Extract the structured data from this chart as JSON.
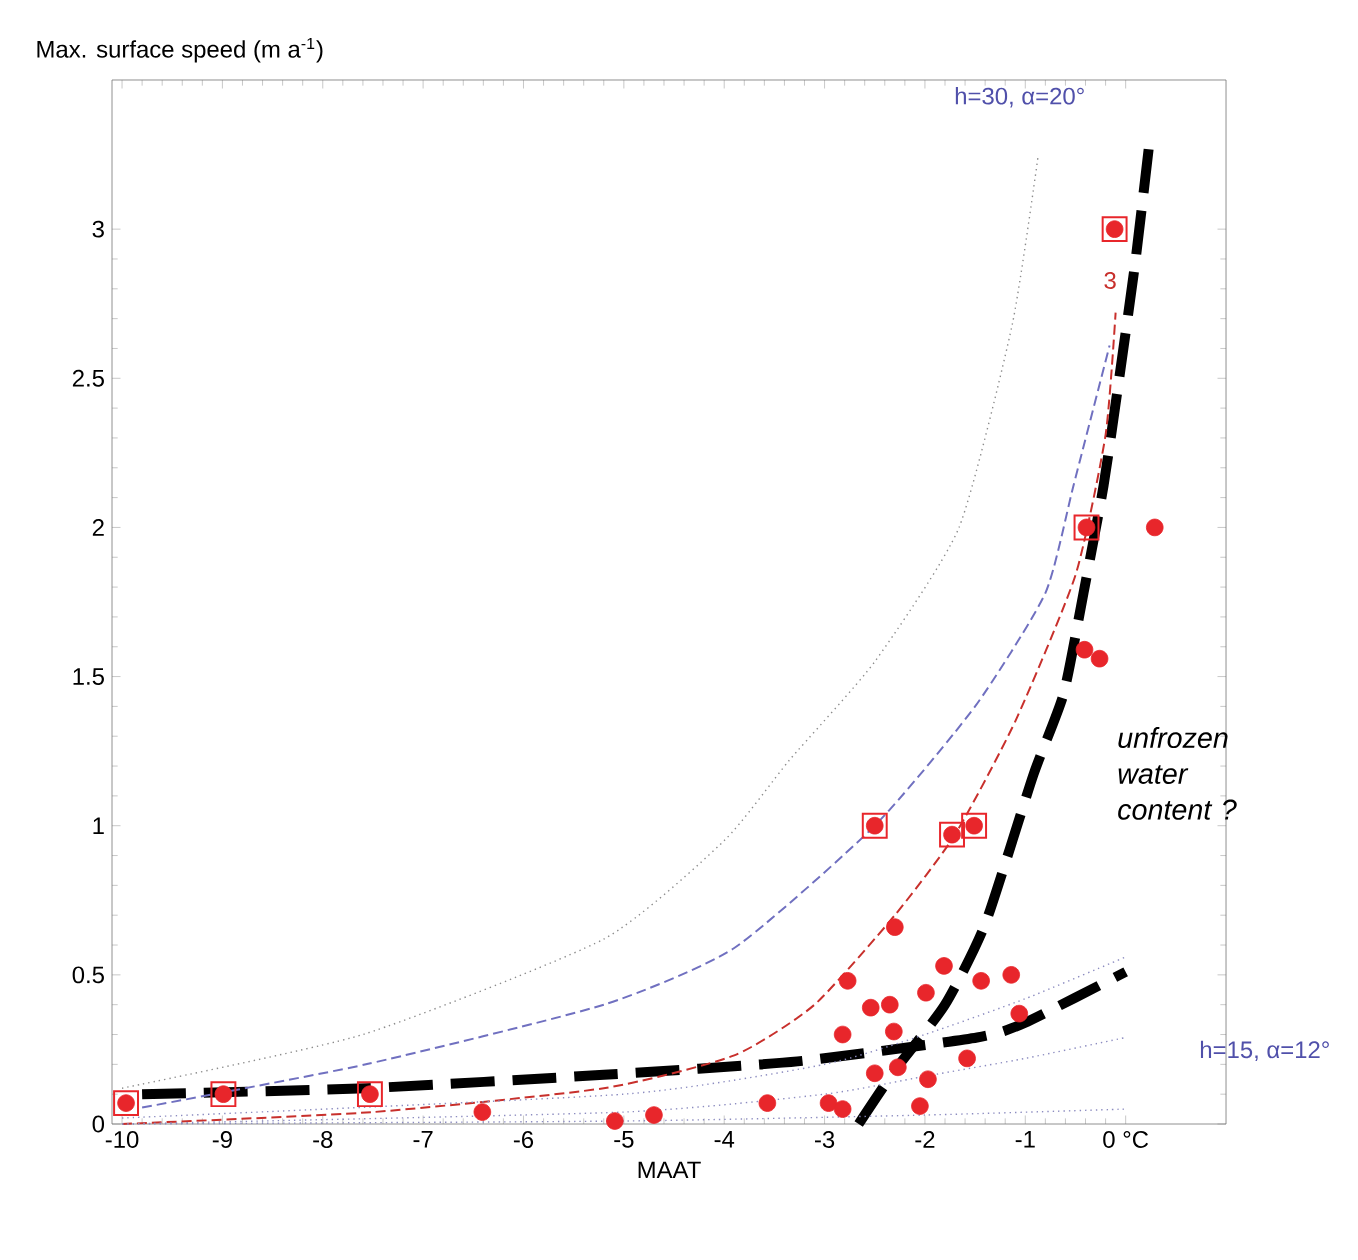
{
  "chart_data": {
    "type": "scatter",
    "ylabel": "Max. surface speed (m a$^{-1}$)",
    "xlabel": "MAAT",
    "xlim": [
      -10.1,
      1.0
    ],
    "ylim": [
      0,
      3.5
    ],
    "xticks": [
      -10,
      -9,
      -8,
      -7,
      -6,
      -5,
      -4,
      -3,
      -2,
      -1,
      {
        "value": 0,
        "label": "0 °C"
      }
    ],
    "yticks": [
      0,
      0.5,
      1,
      1.5,
      2,
      2.5,
      3
    ],
    "grid": false,
    "series": [
      {
        "marker": "circle",
        "color": "#e8262b",
        "x": [
          -9.96,
          -8.99,
          -7.53,
          -6.41,
          -5.09,
          -4.7,
          -3.57,
          -2.96,
          -2.82,
          -2.77,
          -2.82,
          -2.54,
          -2.35,
          -2.31,
          -2.3,
          -2.5,
          -2.27,
          -1.97,
          -2.05,
          -1.99,
          -1.81,
          -1.58,
          -1.44,
          -1.14,
          -1.06,
          -2.5,
          -1.73,
          -1.51,
          -0.39,
          -0.11,
          0.29,
          -0.41,
          -0.26
        ],
        "values": [
          0.07,
          0.1,
          0.1,
          0.04,
          0.01,
          0.03,
          0.07,
          0.07,
          0.05,
          0.48,
          0.3,
          0.39,
          0.4,
          0.31,
          0.66,
          0.17,
          0.19,
          0.15,
          0.06,
          0.44,
          0.53,
          0.22,
          0.48,
          0.5,
          0.37,
          1.0,
          0.97,
          1.0,
          2.0,
          3.0,
          2.0,
          1.59,
          1.56
        ]
      },
      {
        "marker": "square",
        "color": "#e8262b",
        "x": [
          -9.96,
          -8.99,
          -7.53,
          -2.5,
          -1.73,
          -1.51,
          -0.39,
          -0.11
        ],
        "values": [
          0.07,
          0.1,
          0.1,
          1.0,
          0.97,
          1.0,
          2.0,
          3.0
        ]
      },
      {
        "type": "line",
        "line_style": "dashed",
        "color": "#000000",
        "x": [
          -9.8,
          -7.57,
          -5.2,
          -3.27,
          -1.48,
          -1.0,
          0.0
        ],
        "values": [
          0.1,
          0.12,
          0.165,
          0.21,
          0.29,
          0.34,
          0.51
        ]
      },
      {
        "type": "line",
        "line_style": "dashed",
        "color": "#000000",
        "x": [
          -2.66,
          -2.3,
          -1.8,
          -1.4,
          -0.92,
          -0.62,
          -0.42,
          -0.22,
          -0.06,
          0.1,
          0.24
        ],
        "values": [
          0.0,
          0.18,
          0.4,
          0.67,
          1.17,
          1.44,
          1.78,
          2.14,
          2.51,
          2.9,
          3.3
        ]
      },
      {
        "type": "line",
        "line_style": "dashed",
        "color": "#c8302c",
        "x": [
          -10,
          -7.5,
          -5.2,
          -3.9,
          -3.1,
          -2.3,
          -1.7,
          -1.1,
          -0.5,
          -0.2,
          -0.1
        ],
        "values": [
          0.0,
          0.04,
          0.12,
          0.23,
          0.4,
          0.7,
          0.97,
          1.35,
          1.84,
          2.31,
          2.72
        ]
      },
      {
        "type": "line",
        "line_style": "dashed",
        "color": "#7070c0",
        "x": [
          -9.8,
          -7.57,
          -5.2,
          -3.9,
          -2.5,
          -1.5,
          -0.8,
          -0.52,
          -0.16
        ],
        "values": [
          0.055,
          0.2,
          0.4,
          0.59,
          1.0,
          1.4,
          1.78,
          2.14,
          2.61
        ]
      },
      {
        "type": "line",
        "line_style": "dotted",
        "color": "#8c8c8c",
        "x": [
          -10,
          -7.6,
          -5.2,
          -4.0,
          -3.35,
          -2.5,
          -1.66,
          -1.13,
          -0.87
        ],
        "values": [
          0.12,
          0.3,
          0.62,
          0.95,
          1.22,
          1.55,
          2.0,
          2.68,
          3.25
        ]
      },
      {
        "type": "line",
        "line_style": "dotted",
        "color": "#8c8cc0",
        "x": [
          -10,
          -5,
          -3,
          -2,
          -1,
          0
        ],
        "values": [
          0.02,
          0.1,
          0.2,
          0.3,
          0.42,
          0.56
        ]
      },
      {
        "type": "line",
        "line_style": "dotted",
        "color": "#8c8cc0",
        "x": [
          -10,
          -5,
          -3,
          -2,
          -1,
          0
        ],
        "values": [
          0.0,
          0.04,
          0.1,
          0.16,
          0.22,
          0.29
        ]
      },
      {
        "type": "line",
        "line_style": "dotted",
        "color": "#8c8cc0",
        "x": [
          -10,
          -5,
          -2,
          0
        ],
        "values": [
          0.0,
          0.01,
          0.03,
          0.05
        ]
      }
    ],
    "annotations": [
      "h=30, α=20°",
      "h=15, α=12°",
      "unfrozen water content ?",
      "3"
    ]
  }
}
